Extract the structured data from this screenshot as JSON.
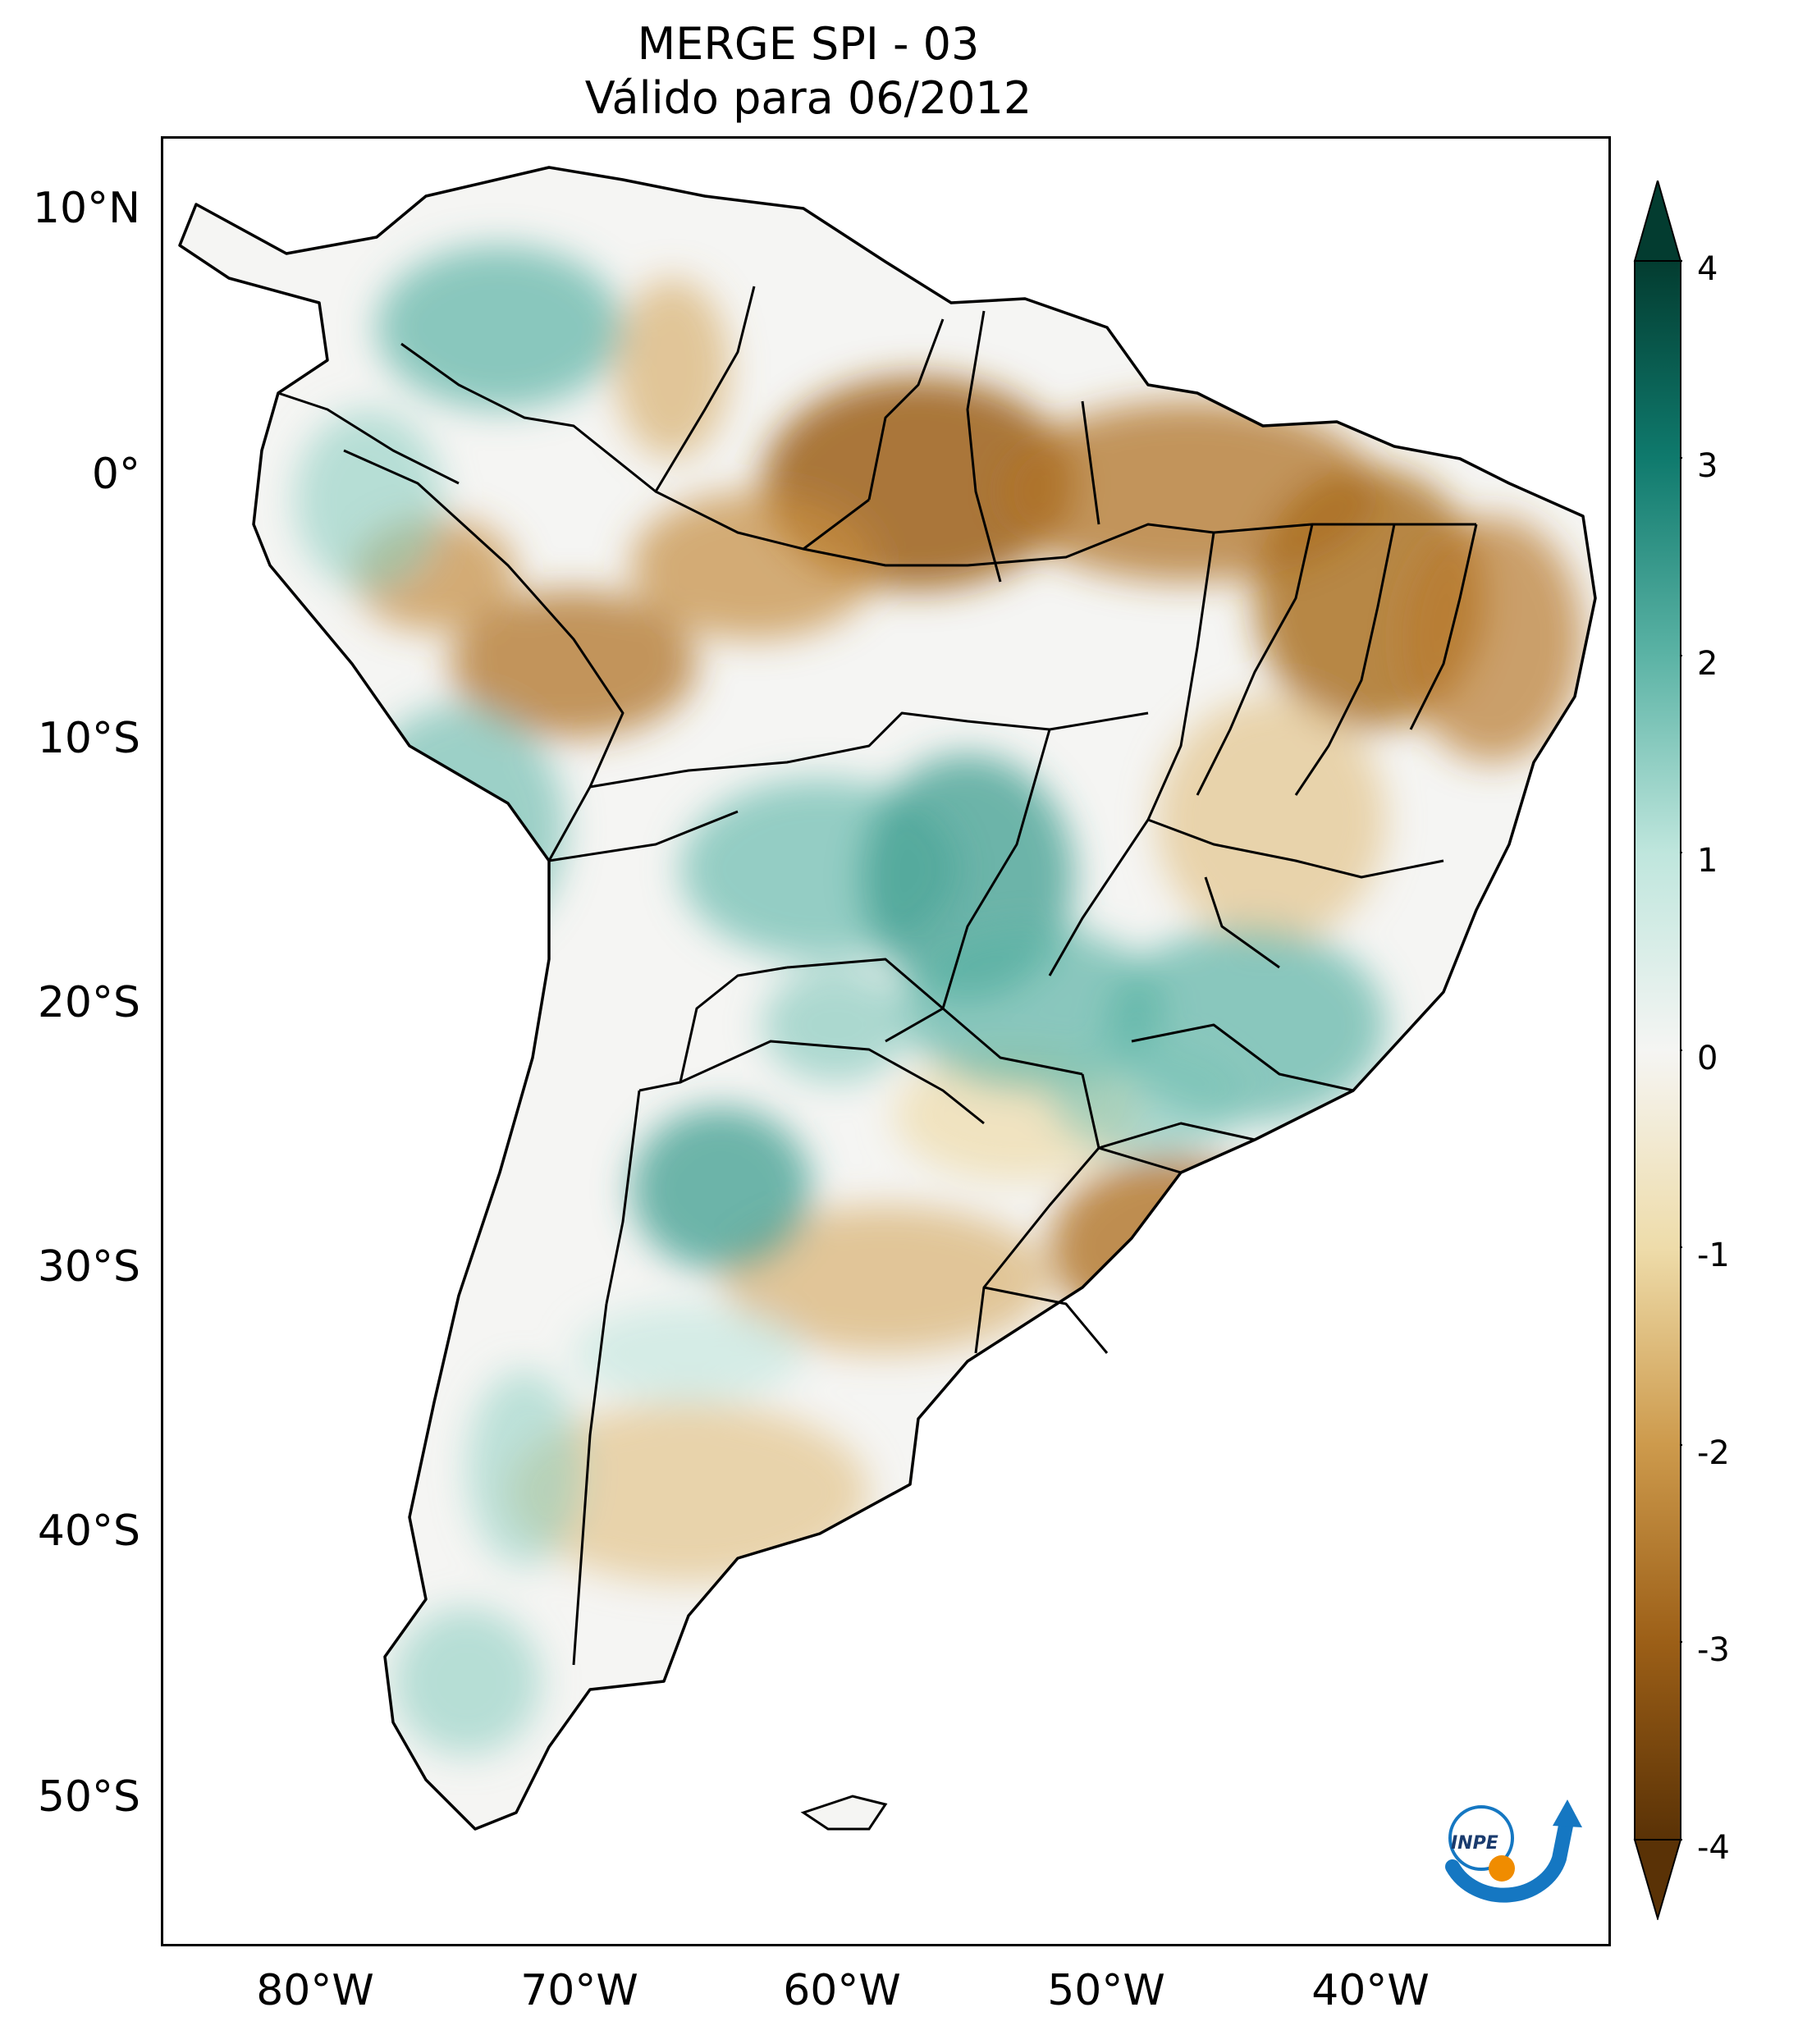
{
  "title": {
    "line1": "MERGE   SPI - 03",
    "line2": "Válido para 06/2012"
  },
  "map": {
    "region": "South America",
    "lat_ticks": [
      "10°N",
      "0°",
      "10°S",
      "20°S",
      "30°S",
      "40°S",
      "50°S"
    ],
    "lon_ticks": [
      "80°W",
      "70°W",
      "60°W",
      "50°W",
      "40°W"
    ]
  },
  "colorbar": {
    "ticks": [
      "4",
      "3",
      "2",
      "1",
      "0",
      "-1",
      "-2",
      "-3",
      "-4"
    ],
    "range": [
      -4,
      4
    ],
    "colors": {
      "dry_extreme": "#5a3206",
      "dry_strong": "#9c5f17",
      "dry_mid": "#cd9a4c",
      "dry_weak": "#eedcaa",
      "neutral": "#f5f5f3",
      "wet_weak": "#bfe6dd",
      "wet_mid": "#5bb3a5",
      "wet_strong": "#0f7a6d",
      "wet_extreme": "#033c30"
    }
  },
  "logo": {
    "text": "INPE",
    "icon": "inpe-logo-icon"
  }
}
